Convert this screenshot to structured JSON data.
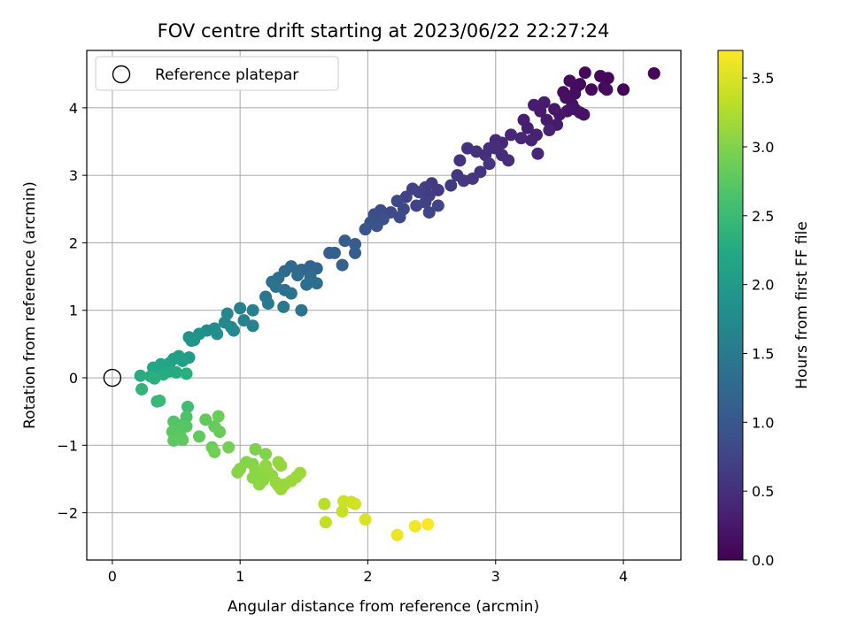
{
  "chart_data": {
    "type": "scatter",
    "title": "FOV centre drift starting at 2023/06/22 22:27:24",
    "xlabel": "Angular distance from reference (arcmin)",
    "ylabel": "Rotation from reference (arcmin)",
    "xlim": [
      -0.2,
      4.45
    ],
    "ylim": [
      -2.7,
      4.85
    ],
    "x_ticks": [
      0,
      1,
      2,
      3,
      4
    ],
    "y_ticks": [
      -2,
      -1,
      0,
      1,
      2,
      3,
      4
    ],
    "x_tick_labels": [
      "0",
      "1",
      "2",
      "3",
      "4"
    ],
    "y_tick_labels": [
      "−2",
      "−1",
      "0",
      "1",
      "2",
      "3",
      "4"
    ],
    "grid": true,
    "legend": {
      "placement": "top-left",
      "entries": [
        {
          "label": "Reference platepar",
          "marker": "open-circle"
        }
      ]
    },
    "reference_point": {
      "x": 0,
      "y": 0,
      "marker": "open-circle",
      "color": "#000000"
    },
    "colorbar": {
      "label": "Hours from first FF file",
      "colormap": "viridis",
      "range": [
        0,
        3.7
      ],
      "ticks": [
        0,
        0.5,
        1,
        1.5,
        2,
        2.5,
        3,
        3.5
      ],
      "tick_labels": [
        "0.0",
        "0.5",
        "1.0",
        "1.5",
        "2.0",
        "2.5",
        "3.0",
        "3.5"
      ]
    },
    "points": [
      {
        "x": 4.24,
        "y": 4.51,
        "c": 0.02
      },
      {
        "x": 4.0,
        "y": 4.27,
        "c": 0.03
      },
      {
        "x": 3.88,
        "y": 4.44,
        "c": 0.05
      },
      {
        "x": 3.82,
        "y": 4.47,
        "c": 0.06
      },
      {
        "x": 3.85,
        "y": 4.3,
        "c": 0.07
      },
      {
        "x": 3.75,
        "y": 4.27,
        "c": 0.08
      },
      {
        "x": 3.7,
        "y": 4.52,
        "c": 0.09
      },
      {
        "x": 3.66,
        "y": 4.35,
        "c": 0.1
      },
      {
        "x": 3.63,
        "y": 4.3,
        "c": 0.11
      },
      {
        "x": 3.58,
        "y": 4.4,
        "c": 0.12
      },
      {
        "x": 3.62,
        "y": 4.21,
        "c": 0.13
      },
      {
        "x": 3.53,
        "y": 4.23,
        "c": 0.14
      },
      {
        "x": 3.55,
        "y": 4.15,
        "c": 0.15
      },
      {
        "x": 3.87,
        "y": 4.27,
        "c": 0.12
      },
      {
        "x": 3.6,
        "y": 4.05,
        "c": 0.17
      },
      {
        "x": 3.66,
        "y": 3.93,
        "c": 0.18
      },
      {
        "x": 3.69,
        "y": 3.9,
        "c": 0.19
      },
      {
        "x": 3.62,
        "y": 3.98,
        "c": 0.2
      },
      {
        "x": 3.56,
        "y": 3.95,
        "c": 0.21
      },
      {
        "x": 3.5,
        "y": 3.9,
        "c": 0.23
      },
      {
        "x": 3.46,
        "y": 3.98,
        "c": 0.24
      },
      {
        "x": 3.4,
        "y": 3.82,
        "c": 0.26
      },
      {
        "x": 3.48,
        "y": 3.75,
        "c": 0.27
      },
      {
        "x": 3.35,
        "y": 3.95,
        "c": 0.28
      },
      {
        "x": 3.38,
        "y": 4.08,
        "c": 0.29
      },
      {
        "x": 3.3,
        "y": 4.04,
        "c": 0.3
      },
      {
        "x": 3.22,
        "y": 3.82,
        "c": 0.31
      },
      {
        "x": 3.25,
        "y": 3.7,
        "c": 0.32
      },
      {
        "x": 3.32,
        "y": 3.6,
        "c": 0.34
      },
      {
        "x": 3.42,
        "y": 3.67,
        "c": 0.35
      },
      {
        "x": 3.28,
        "y": 3.52,
        "c": 0.36
      },
      {
        "x": 3.2,
        "y": 3.55,
        "c": 0.38
      },
      {
        "x": 3.12,
        "y": 3.6,
        "c": 0.4
      },
      {
        "x": 3.33,
        "y": 3.32,
        "c": 0.41
      },
      {
        "x": 3.05,
        "y": 3.48,
        "c": 0.43
      },
      {
        "x": 3.0,
        "y": 3.52,
        "c": 0.44
      },
      {
        "x": 2.95,
        "y": 3.4,
        "c": 0.46
      },
      {
        "x": 3.05,
        "y": 3.3,
        "c": 0.47
      },
      {
        "x": 3.1,
        "y": 3.22,
        "c": 0.48
      },
      {
        "x": 2.92,
        "y": 3.3,
        "c": 0.5
      },
      {
        "x": 2.85,
        "y": 3.35,
        "c": 0.51
      },
      {
        "x": 2.78,
        "y": 3.4,
        "c": 0.53
      },
      {
        "x": 2.72,
        "y": 3.22,
        "c": 0.54
      },
      {
        "x": 2.95,
        "y": 3.17,
        "c": 0.55
      },
      {
        "x": 2.88,
        "y": 3.05,
        "c": 0.56
      },
      {
        "x": 3.0,
        "y": 3.4,
        "c": 0.49
      },
      {
        "x": 2.82,
        "y": 2.95,
        "c": 0.58
      },
      {
        "x": 2.75,
        "y": 2.92,
        "c": 0.6
      },
      {
        "x": 2.65,
        "y": 2.85,
        "c": 0.61
      },
      {
        "x": 2.7,
        "y": 3.0,
        "c": 0.59
      },
      {
        "x": 2.55,
        "y": 2.78,
        "c": 0.63
      },
      {
        "x": 2.5,
        "y": 2.88,
        "c": 0.64
      },
      {
        "x": 2.45,
        "y": 2.82,
        "c": 0.66
      },
      {
        "x": 2.48,
        "y": 2.7,
        "c": 0.67
      },
      {
        "x": 2.4,
        "y": 2.75,
        "c": 0.68
      },
      {
        "x": 2.35,
        "y": 2.8,
        "c": 0.7
      },
      {
        "x": 2.3,
        "y": 2.68,
        "c": 0.71
      },
      {
        "x": 2.45,
        "y": 2.6,
        "c": 0.72
      },
      {
        "x": 2.38,
        "y": 2.55,
        "c": 0.73
      },
      {
        "x": 2.55,
        "y": 2.55,
        "c": 0.74
      },
      {
        "x": 2.48,
        "y": 2.45,
        "c": 0.75
      },
      {
        "x": 2.28,
        "y": 2.5,
        "c": 0.78
      },
      {
        "x": 2.23,
        "y": 2.62,
        "c": 0.8
      },
      {
        "x": 2.18,
        "y": 2.45,
        "c": 0.83
      },
      {
        "x": 2.25,
        "y": 2.38,
        "c": 0.84
      },
      {
        "x": 2.1,
        "y": 2.48,
        "c": 0.86
      },
      {
        "x": 2.05,
        "y": 2.42,
        "c": 0.88
      },
      {
        "x": 2.12,
        "y": 2.35,
        "c": 0.9
      },
      {
        "x": 2.02,
        "y": 2.3,
        "c": 0.92
      },
      {
        "x": 2.07,
        "y": 2.25,
        "c": 0.94
      },
      {
        "x": 1.98,
        "y": 2.2,
        "c": 0.97
      },
      {
        "x": 1.9,
        "y": 1.98,
        "c": 1.05
      },
      {
        "x": 1.82,
        "y": 2.03,
        "c": 1.08
      },
      {
        "x": 1.9,
        "y": 1.85,
        "c": 1.1
      },
      {
        "x": 1.7,
        "y": 1.85,
        "c": 1.12
      },
      {
        "x": 1.74,
        "y": 1.85,
        "c": 1.13
      },
      {
        "x": 1.8,
        "y": 1.67,
        "c": 1.15
      },
      {
        "x": 1.6,
        "y": 1.62,
        "c": 1.18
      },
      {
        "x": 1.55,
        "y": 1.65,
        "c": 1.2
      },
      {
        "x": 1.48,
        "y": 1.6,
        "c": 1.22
      },
      {
        "x": 1.4,
        "y": 1.65,
        "c": 1.25
      },
      {
        "x": 1.35,
        "y": 1.58,
        "c": 1.27
      },
      {
        "x": 1.45,
        "y": 1.52,
        "c": 1.28
      },
      {
        "x": 1.55,
        "y": 1.5,
        "c": 1.3
      },
      {
        "x": 1.6,
        "y": 1.4,
        "c": 1.32
      },
      {
        "x": 1.52,
        "y": 1.38,
        "c": 1.33
      },
      {
        "x": 1.3,
        "y": 1.48,
        "c": 1.35
      },
      {
        "x": 1.25,
        "y": 1.42,
        "c": 1.37
      },
      {
        "x": 1.35,
        "y": 1.3,
        "c": 1.38
      },
      {
        "x": 1.28,
        "y": 1.35,
        "c": 1.4
      },
      {
        "x": 1.4,
        "y": 1.25,
        "c": 1.41
      },
      {
        "x": 1.2,
        "y": 1.2,
        "c": 1.45
      },
      {
        "x": 1.22,
        "y": 1.1,
        "c": 1.48
      },
      {
        "x": 1.34,
        "y": 1.05,
        "c": 1.47
      },
      {
        "x": 1.48,
        "y": 1.0,
        "c": 1.42
      },
      {
        "x": 1.1,
        "y": 1.0,
        "c": 1.58
      },
      {
        "x": 1.0,
        "y": 1.03,
        "c": 1.6
      },
      {
        "x": 1.03,
        "y": 0.85,
        "c": 1.62
      },
      {
        "x": 1.1,
        "y": 0.77,
        "c": 1.64
      },
      {
        "x": 0.9,
        "y": 0.95,
        "c": 1.7
      },
      {
        "x": 0.88,
        "y": 0.82,
        "c": 1.72
      },
      {
        "x": 0.93,
        "y": 0.75,
        "c": 1.73
      },
      {
        "x": 0.95,
        "y": 0.7,
        "c": 1.75
      },
      {
        "x": 0.8,
        "y": 0.73,
        "c": 1.78
      },
      {
        "x": 0.74,
        "y": 0.7,
        "c": 1.8
      },
      {
        "x": 0.82,
        "y": 0.65,
        "c": 1.82
      },
      {
        "x": 0.68,
        "y": 0.65,
        "c": 1.85
      },
      {
        "x": 0.62,
        "y": 0.55,
        "c": 1.9
      },
      {
        "x": 0.6,
        "y": 0.6,
        "c": 1.88
      },
      {
        "x": 0.64,
        "y": 0.56,
        "c": 1.92
      },
      {
        "x": 0.6,
        "y": 0.3,
        "c": 2.0
      },
      {
        "x": 0.52,
        "y": 0.32,
        "c": 2.05
      },
      {
        "x": 0.48,
        "y": 0.28,
        "c": 2.07
      },
      {
        "x": 0.55,
        "y": 0.25,
        "c": 2.08
      },
      {
        "x": 0.45,
        "y": 0.22,
        "c": 2.1
      },
      {
        "x": 0.42,
        "y": 0.18,
        "c": 2.12
      },
      {
        "x": 0.38,
        "y": 0.2,
        "c": 2.15
      },
      {
        "x": 0.32,
        "y": 0.15,
        "c": 2.18
      },
      {
        "x": 0.35,
        "y": 0.1,
        "c": 2.2
      },
      {
        "x": 0.45,
        "y": 0.1,
        "c": 2.22
      },
      {
        "x": 0.5,
        "y": 0.08,
        "c": 2.25
      },
      {
        "x": 0.4,
        "y": 0.05,
        "c": 2.27
      },
      {
        "x": 0.3,
        "y": 0.02,
        "c": 2.28
      },
      {
        "x": 0.22,
        "y": 0.03,
        "c": 2.3
      },
      {
        "x": 0.58,
        "y": 0.06,
        "c": 2.32
      },
      {
        "x": 0.33,
        "y": -0.01,
        "c": 2.33
      },
      {
        "x": 0.23,
        "y": -0.17,
        "c": 2.4
      },
      {
        "x": 0.35,
        "y": -0.35,
        "c": 2.45
      },
      {
        "x": 0.37,
        "y": -0.34,
        "c": 2.47
      },
      {
        "x": 0.59,
        "y": -0.43,
        "c": 2.55
      },
      {
        "x": 0.58,
        "y": -0.58,
        "c": 2.65
      },
      {
        "x": 0.48,
        "y": -0.65,
        "c": 2.68
      },
      {
        "x": 0.52,
        "y": -0.7,
        "c": 2.7
      },
      {
        "x": 0.58,
        "y": -0.72,
        "c": 2.72
      },
      {
        "x": 0.47,
        "y": -0.8,
        "c": 2.74
      },
      {
        "x": 0.53,
        "y": -0.85,
        "c": 2.75
      },
      {
        "x": 0.48,
        "y": -0.93,
        "c": 2.76
      },
      {
        "x": 0.55,
        "y": -0.92,
        "c": 2.78
      },
      {
        "x": 0.68,
        "y": -0.87,
        "c": 2.8
      },
      {
        "x": 0.73,
        "y": -0.62,
        "c": 2.8
      },
      {
        "x": 0.8,
        "y": -0.72,
        "c": 2.82
      },
      {
        "x": 0.84,
        "y": -0.8,
        "c": 2.84
      },
      {
        "x": 0.83,
        "y": -0.57,
        "c": 2.86
      },
      {
        "x": 0.78,
        "y": -1.03,
        "c": 2.88
      },
      {
        "x": 0.8,
        "y": -1.1,
        "c": 2.9
      },
      {
        "x": 0.91,
        "y": -1.03,
        "c": 2.92
      },
      {
        "x": 1.12,
        "y": -1.06,
        "c": 2.97
      },
      {
        "x": 1.2,
        "y": -1.13,
        "c": 3.0
      },
      {
        "x": 1.05,
        "y": -1.25,
        "c": 3.01
      },
      {
        "x": 1.1,
        "y": -1.28,
        "c": 3.02
      },
      {
        "x": 1.0,
        "y": -1.35,
        "c": 3.03
      },
      {
        "x": 0.98,
        "y": -1.4,
        "c": 3.04
      },
      {
        "x": 1.12,
        "y": -1.38,
        "c": 3.05
      },
      {
        "x": 1.15,
        "y": -1.45,
        "c": 3.06
      },
      {
        "x": 1.1,
        "y": -1.48,
        "c": 3.06
      },
      {
        "x": 1.18,
        "y": -1.52,
        "c": 3.07
      },
      {
        "x": 1.15,
        "y": -1.58,
        "c": 3.08
      },
      {
        "x": 1.22,
        "y": -1.4,
        "c": 3.08
      },
      {
        "x": 1.25,
        "y": -1.45,
        "c": 3.09
      },
      {
        "x": 1.2,
        "y": -1.3,
        "c": 3.09
      },
      {
        "x": 1.3,
        "y": -1.25,
        "c": 3.1
      },
      {
        "x": 1.32,
        "y": -1.3,
        "c": 3.1
      },
      {
        "x": 1.28,
        "y": -1.55,
        "c": 3.11
      },
      {
        "x": 1.3,
        "y": -1.6,
        "c": 3.12
      },
      {
        "x": 1.35,
        "y": -1.58,
        "c": 3.12
      },
      {
        "x": 1.32,
        "y": -1.65,
        "c": 3.13
      },
      {
        "x": 1.4,
        "y": -1.53,
        "c": 3.14
      },
      {
        "x": 1.44,
        "y": -1.47,
        "c": 3.15
      },
      {
        "x": 1.47,
        "y": -1.41,
        "c": 3.15
      },
      {
        "x": 1.66,
        "y": -1.87,
        "c": 3.3
      },
      {
        "x": 1.67,
        "y": -2.14,
        "c": 3.35
      },
      {
        "x": 1.8,
        "y": -1.98,
        "c": 3.38
      },
      {
        "x": 1.81,
        "y": -1.83,
        "c": 3.4
      },
      {
        "x": 1.87,
        "y": -1.84,
        "c": 3.42
      },
      {
        "x": 1.9,
        "y": -1.87,
        "c": 3.44
      },
      {
        "x": 1.98,
        "y": -2.1,
        "c": 3.5
      },
      {
        "x": 2.23,
        "y": -2.33,
        "c": 3.6
      },
      {
        "x": 2.37,
        "y": -2.2,
        "c": 3.65
      },
      {
        "x": 2.47,
        "y": -2.17,
        "c": 3.68
      }
    ]
  }
}
